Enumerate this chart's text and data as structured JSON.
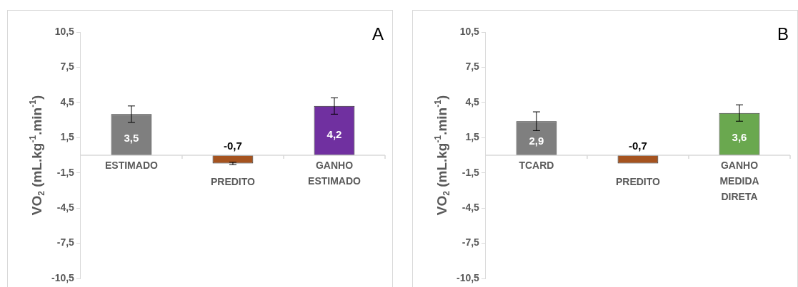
{
  "chart_data": [
    {
      "type": "bar",
      "ylabel": "VO$_{2}$ (mL.kg$^{-1}$.min$^{-1}$)",
      "annotations": [
        "A"
      ],
      "categories": [
        "ESTIMADO",
        "PREDITO",
        "GANHO ESTIMADO"
      ],
      "values": [
        3.5,
        -0.7,
        4.2
      ],
      "colors": [
        "#7f7f7f",
        "#a5531f",
        "#7030a0"
      ],
      "errors": [
        0.7,
        0.1,
        0.7
      ],
      "value_labels": [
        "3,5",
        "-0,7",
        "4,2"
      ],
      "ylim": [
        -10.5,
        10.5
      ],
      "yticks": [
        {
          "value": 10.5,
          "label": "10,5"
        },
        {
          "value": 7.5,
          "label": "7,5"
        },
        {
          "value": 4.5,
          "label": "4,5"
        },
        {
          "value": 1.5,
          "label": "1,5"
        },
        {
          "value": -1.5,
          "label": "-1,5"
        },
        {
          "value": -4.5,
          "label": "-4,5"
        },
        {
          "value": -7.5,
          "label": "-7,5"
        },
        {
          "value": -10.5,
          "label": "-10,5"
        }
      ],
      "grid": false,
      "legend": false
    },
    {
      "type": "bar",
      "ylabel": "VO$_{2}$ (mL.kg$^{-1}$.min$^{-1}$)",
      "annotations": [
        "B"
      ],
      "categories": [
        "TCARD",
        "PREDITO",
        "GANHO MEDIDA DIRETA"
      ],
      "values": [
        2.9,
        -0.7,
        3.6
      ],
      "colors": [
        "#7f7f7f",
        "#a5531f",
        "#6aa84f"
      ],
      "errors": [
        0.8,
        null,
        0.7
      ],
      "value_labels": [
        "2,9",
        "-0,7",
        "3,6"
      ],
      "ylim": [
        -10.5,
        10.5
      ],
      "yticks": [
        {
          "value": 10.5,
          "label": "10,5"
        },
        {
          "value": 7.5,
          "label": "7,5"
        },
        {
          "value": 4.5,
          "label": "4,5"
        },
        {
          "value": 1.5,
          "label": "1,5"
        },
        {
          "value": -1.5,
          "label": "-1,5"
        },
        {
          "value": -4.5,
          "label": "-4,5"
        },
        {
          "value": -7.5,
          "label": "-7,5"
        },
        {
          "value": -10.5,
          "label": "-10,5"
        }
      ],
      "grid": false,
      "legend": false
    }
  ]
}
